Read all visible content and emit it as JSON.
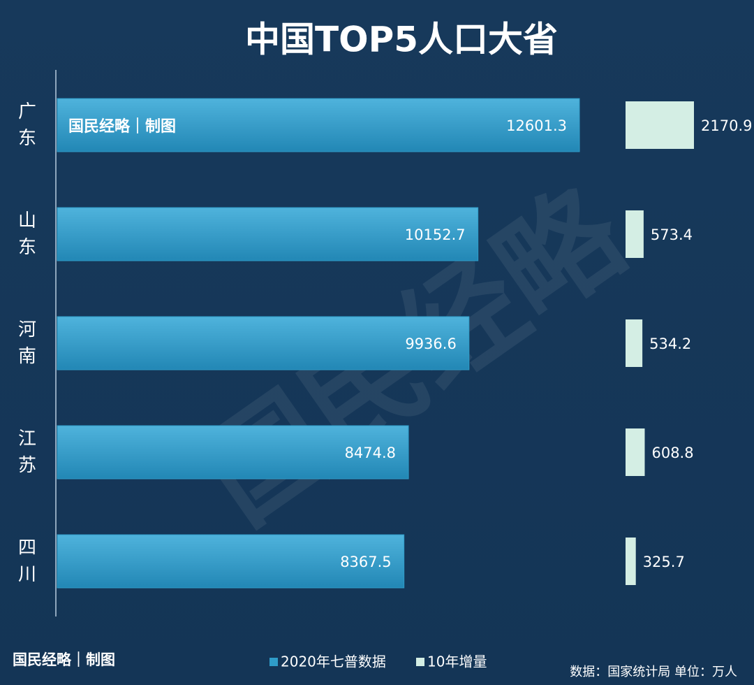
{
  "chart_data": {
    "type": "bar",
    "title": "中国TOP5人口大省",
    "categories": [
      "广东",
      "山东",
      "河南",
      "江苏",
      "四川"
    ],
    "series": [
      {
        "name": "2020年七普数据",
        "color": "#2f9cc8",
        "values": [
          12601.3,
          10152.7,
          9936.6,
          8474.8,
          8367.5
        ]
      },
      {
        "name": "10年增量",
        "color": "#d4eee4",
        "values": [
          2170.9,
          573.4,
          534.2,
          608.8,
          325.7
        ]
      }
    ],
    "brand": "国民经略｜制图",
    "watermark": "国民经略",
    "source": "数据：国家统计局 单位：万人"
  }
}
